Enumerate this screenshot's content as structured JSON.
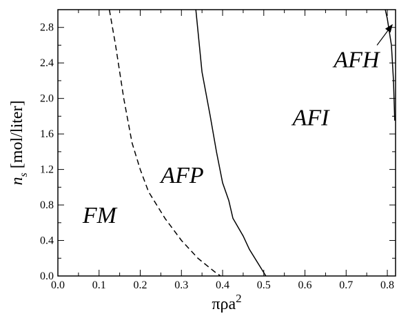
{
  "chart_data": {
    "type": "line",
    "xlabel": {
      "main": "πρa",
      "sup": "2"
    },
    "ylabel": {
      "main": "n",
      "sub": "s",
      "unit": " [mol/liter]"
    },
    "xlim": [
      0.0,
      0.82
    ],
    "ylim": [
      0.0,
      3.0
    ],
    "x_ticks": [
      "0.0",
      "0.1",
      "0.2",
      "0.3",
      "0.4",
      "0.5",
      "0.6",
      "0.7",
      "0.8"
    ],
    "y_ticks": [
      "0.0",
      "0.4",
      "0.8",
      "1.2",
      "1.6",
      "2.0",
      "2.4",
      "2.8"
    ],
    "grid": false,
    "series": [
      {
        "style": "dashed",
        "points": [
          [
            0.125,
            3.0
          ],
          [
            0.14,
            2.6
          ],
          [
            0.16,
            2.0
          ],
          [
            0.18,
            1.5
          ],
          [
            0.2,
            1.2
          ],
          [
            0.22,
            0.95
          ],
          [
            0.26,
            0.65
          ],
          [
            0.3,
            0.4
          ],
          [
            0.34,
            0.2
          ],
          [
            0.38,
            0.05
          ],
          [
            0.395,
            0.0
          ]
        ]
      },
      {
        "style": "solid",
        "points": [
          [
            0.335,
            3.0
          ],
          [
            0.35,
            2.3
          ],
          [
            0.37,
            1.8
          ],
          [
            0.385,
            1.4
          ],
          [
            0.4,
            1.05
          ],
          [
            0.415,
            0.85
          ],
          [
            0.425,
            0.65
          ],
          [
            0.45,
            0.45
          ],
          [
            0.465,
            0.3
          ],
          [
            0.505,
            0.0
          ]
        ]
      },
      {
        "style": "solid",
        "points": [
          [
            0.795,
            3.0
          ],
          [
            0.8,
            2.9
          ],
          [
            0.81,
            2.6
          ],
          [
            0.815,
            2.2
          ],
          [
            0.818,
            1.75
          ]
        ]
      }
    ],
    "regions": [
      {
        "label": "FM",
        "x": 0.06,
        "y": 0.6
      },
      {
        "label": "AFP",
        "x": 0.25,
        "y": 1.05
      },
      {
        "label": "AFI",
        "x": 0.57,
        "y": 1.7
      },
      {
        "label": "AFH",
        "x": 0.67,
        "y": 2.35
      }
    ],
    "annotation": {
      "text": "AFH",
      "from": [
        0.775,
        2.6
      ],
      "to": [
        0.812,
        2.83
      ]
    }
  }
}
